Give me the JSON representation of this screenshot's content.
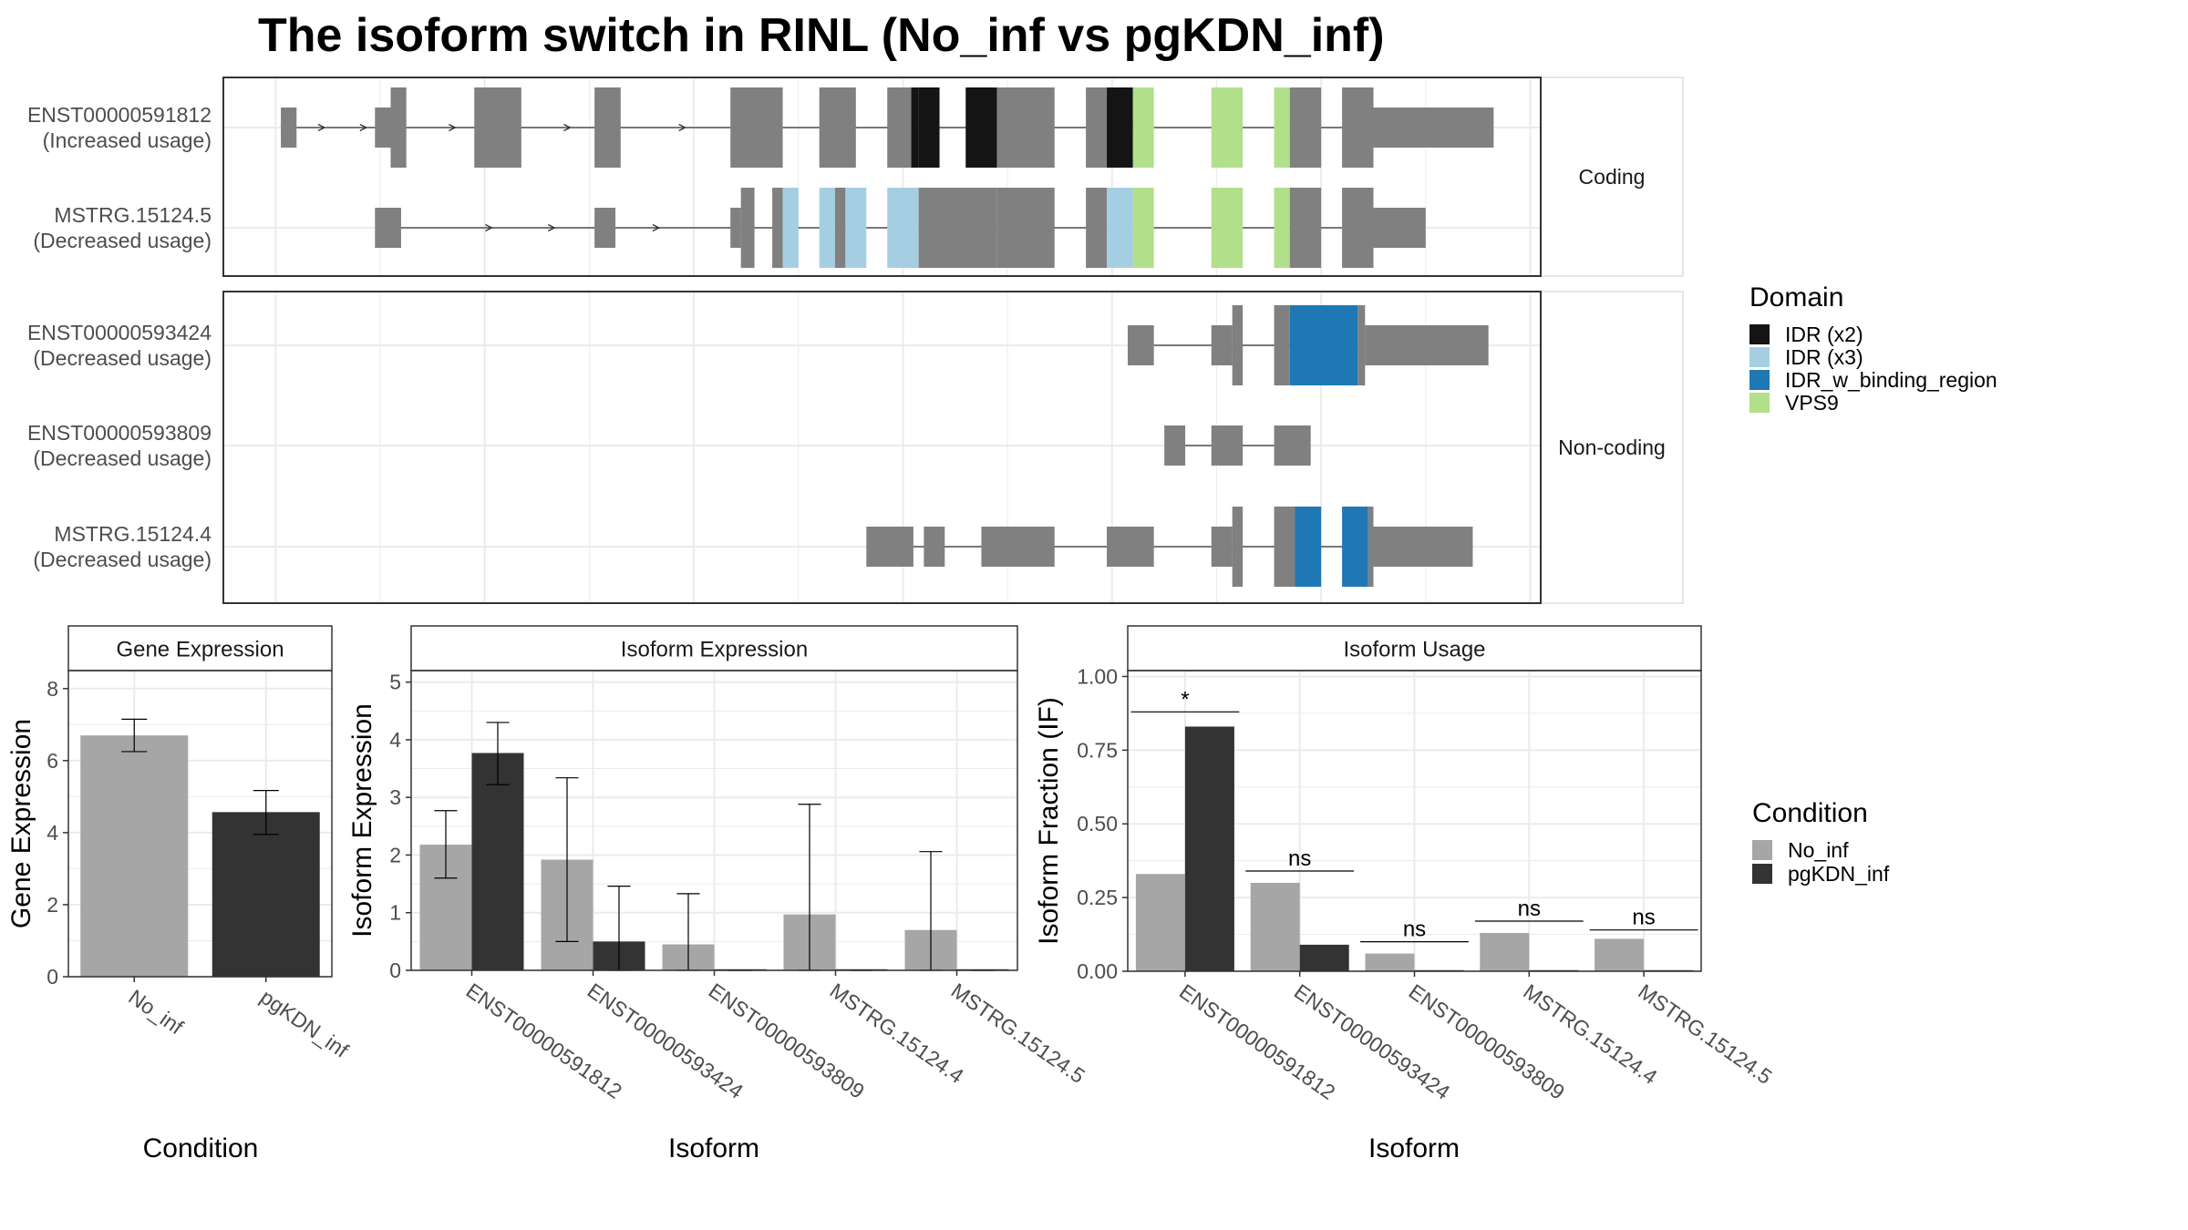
{
  "title": "The isoform switch in RINL (No_inf vs pgKDN_inf)",
  "colors": {
    "exon": "#808080",
    "panel_border": "#333333",
    "grid": "#ebebeb",
    "strip_bg": "#ffffff",
    "no_inf": "#a6a6a6",
    "pgkdn_inf": "#333333"
  },
  "transcript_panels": [
    {
      "strip_label": "Coding",
      "transcripts": [
        {
          "id": "ENST00000591812",
          "usage": "(Increased usage)",
          "exons": [
            {
              "s": 0.5,
              "e": 2.0,
              "h": "s"
            },
            {
              "s": 9.5,
              "e": 11.0,
              "h": "s"
            },
            {
              "s": 11.0,
              "e": 12.5,
              "h": "t"
            },
            {
              "s": 19.0,
              "e": 23.5,
              "h": "t"
            },
            {
              "s": 30.5,
              "e": 33.0,
              "h": "t"
            },
            {
              "s": 43.5,
              "e": 48.5,
              "h": "t"
            },
            {
              "s": 52.0,
              "e": 55.5,
              "h": "t"
            },
            {
              "s": 58.5,
              "e": 61.5,
              "h": "t",
              "d": "IDR (x2)",
              "ds": 60.8,
              "de": 61.5
            },
            {
              "s": 61.5,
              "e": 63.5,
              "h": "t",
              "d": "IDR (x2)"
            },
            {
              "s": 66.0,
              "e": 69.0,
              "h": "t",
              "d": "IDR (x2)"
            },
            {
              "s": 69.0,
              "e": 74.5,
              "h": "t"
            },
            {
              "s": 77.5,
              "e": 79.5,
              "h": "t"
            },
            {
              "s": 79.5,
              "e": 82.0,
              "h": "t",
              "d": "IDR (x2)"
            },
            {
              "s": 82.0,
              "e": 84.0,
              "h": "t",
              "d": "VPS9"
            },
            {
              "s": 89.5,
              "e": 92.5,
              "h": "t",
              "d": "VPS9"
            },
            {
              "s": 95.5,
              "e": 97.0,
              "h": "t",
              "d": "VPS9"
            },
            {
              "s": 97.0,
              "e": 100.0,
              "h": "t"
            },
            {
              "s": 102.0,
              "e": 105.0,
              "h": "t"
            },
            {
              "s": 105.0,
              "e": 116.5,
              "h": "s"
            }
          ],
          "intron": {
            "s": 2.0,
            "e": 105.0
          },
          "arrows": [
            4.5,
            8.5,
            17.0,
            28.0,
            39.0
          ]
        },
        {
          "id": "MSTRG.15124.5",
          "usage": "(Decreased usage)",
          "exons": [
            {
              "s": 9.5,
              "e": 12.0,
              "h": "s"
            },
            {
              "s": 30.5,
              "e": 32.5,
              "h": "s"
            },
            {
              "s": 43.5,
              "e": 44.5,
              "h": "s"
            },
            {
              "s": 44.5,
              "e": 45.8,
              "h": "t"
            },
            {
              "s": 47.5,
              "e": 48.5,
              "h": "t"
            },
            {
              "s": 48.5,
              "e": 50.0,
              "h": "t",
              "d": "IDR (x3)"
            },
            {
              "s": 52.0,
              "e": 53.5,
              "h": "t",
              "d": "IDR (x3)"
            },
            {
              "s": 53.5,
              "e": 54.5,
              "h": "t"
            },
            {
              "s": 54.5,
              "e": 56.5,
              "h": "t",
              "d": "IDR (x3)"
            },
            {
              "s": 58.5,
              "e": 61.5,
              "h": "t",
              "d": "IDR (x3)"
            },
            {
              "s": 61.5,
              "e": 69.0,
              "h": "t"
            },
            {
              "s": 69.0,
              "e": 74.5,
              "h": "t"
            },
            {
              "s": 77.5,
              "e": 79.5,
              "h": "t"
            },
            {
              "s": 79.5,
              "e": 82.0,
              "h": "t",
              "d": "IDR (x3)"
            },
            {
              "s": 82.0,
              "e": 84.0,
              "h": "t",
              "d": "VPS9"
            },
            {
              "s": 89.5,
              "e": 92.5,
              "h": "t",
              "d": "VPS9"
            },
            {
              "s": 95.5,
              "e": 97.0,
              "h": "t",
              "d": "VPS9"
            },
            {
              "s": 97.0,
              "e": 100.0,
              "h": "t"
            },
            {
              "s": 102.0,
              "e": 105.0,
              "h": "t"
            },
            {
              "s": 105.0,
              "e": 110.0,
              "h": "s"
            }
          ],
          "intron": {
            "s": 12.0,
            "e": 105.0
          },
          "arrows": [
            20.5,
            26.5,
            36.5
          ]
        }
      ]
    },
    {
      "strip_label": "Non-coding",
      "transcripts": [
        {
          "id": "ENST00000593424",
          "usage": "(Decreased usage)",
          "exons": [
            {
              "s": 81.5,
              "e": 84.0,
              "h": "s"
            },
            {
              "s": 89.5,
              "e": 91.5,
              "h": "s"
            },
            {
              "s": 91.5,
              "e": 92.5,
              "h": "t"
            },
            {
              "s": 95.5,
              "e": 97.0,
              "h": "t"
            },
            {
              "s": 97.0,
              "e": 103.5,
              "h": "t",
              "d": "IDR_w_binding_region"
            },
            {
              "s": 103.5,
              "e": 104.2,
              "h": "t"
            },
            {
              "s": 104.2,
              "e": 116.0,
              "h": "s"
            }
          ],
          "intron": {
            "s": 84.0,
            "e": 104.2
          },
          "arrows": []
        },
        {
          "id": "ENST00000593809",
          "usage": "(Decreased usage)",
          "exons": [
            {
              "s": 85.0,
              "e": 87.0,
              "h": "s"
            },
            {
              "s": 89.5,
              "e": 92.5,
              "h": "s"
            },
            {
              "s": 95.5,
              "e": 99.0,
              "h": "s"
            }
          ],
          "intron": {
            "s": 87.0,
            "e": 95.5
          },
          "arrows": []
        },
        {
          "id": "MSTRG.15124.4",
          "usage": "(Decreased usage)",
          "exons": [
            {
              "s": 56.5,
              "e": 61.0,
              "h": "s"
            },
            {
              "s": 62.0,
              "e": 64.0,
              "h": "s"
            },
            {
              "s": 67.5,
              "e": 74.5,
              "h": "s"
            },
            {
              "s": 79.5,
              "e": 84.0,
              "h": "s"
            },
            {
              "s": 89.5,
              "e": 91.5,
              "h": "s"
            },
            {
              "s": 91.5,
              "e": 92.5,
              "h": "t"
            },
            {
              "s": 95.5,
              "e": 97.5,
              "h": "t"
            },
            {
              "s": 97.5,
              "e": 100.0,
              "h": "t",
              "d": "IDR_w_binding_region"
            },
            {
              "s": 102.0,
              "e": 104.5,
              "h": "t",
              "d": "IDR_w_binding_region"
            },
            {
              "s": 104.5,
              "e": 105.0,
              "h": "t"
            },
            {
              "s": 105.0,
              "e": 114.5,
              "h": "s"
            }
          ],
          "intron": {
            "s": 61.0,
            "e": 105.0
          },
          "arrows": []
        }
      ]
    }
  ],
  "domain_legend": {
    "title": "Domain",
    "entries": [
      {
        "label": "IDR (x2)",
        "color": "#141414"
      },
      {
        "label": "IDR (x3)",
        "color": "#a6cee3"
      },
      {
        "label": "IDR_w_binding_region",
        "color": "#1f78b4"
      },
      {
        "label": "VPS9",
        "color": "#b2df8a"
      }
    ]
  },
  "condition_legend": {
    "title": "Condition",
    "entries": [
      {
        "label": "No_inf",
        "color": "#a6a6a6"
      },
      {
        "label": "pgKDN_inf",
        "color": "#333333"
      }
    ]
  },
  "chart_data": [
    {
      "type": "bar",
      "title": "Gene Expression",
      "xlabel": "Condition",
      "ylabel": "Gene Expression",
      "ylim": [
        0,
        8.5
      ],
      "yticks": [
        0,
        2,
        4,
        6,
        8
      ],
      "ytick_labels": [
        "0",
        "2",
        "4",
        "6",
        "8"
      ],
      "categories": [
        "No_inf",
        "pgKDN_inf"
      ],
      "series": [
        {
          "name": "No_inf",
          "values": [
            6.7,
            null
          ],
          "err_low": [
            6.25,
            null
          ],
          "err_high": [
            7.15,
            null
          ]
        },
        {
          "name": "pgKDN_inf",
          "values": [
            null,
            4.57
          ],
          "err_low": [
            null,
            3.95
          ],
          "err_high": [
            null,
            5.17
          ]
        }
      ]
    },
    {
      "type": "bar",
      "title": "Isoform Expression",
      "xlabel": "Isoform",
      "ylabel": "Isoform Expression",
      "ylim": [
        0,
        5.2
      ],
      "yticks": [
        0,
        1,
        2,
        3,
        4,
        5
      ],
      "ytick_labels": [
        "0",
        "1",
        "2",
        "3",
        "4",
        "5"
      ],
      "categories": [
        "ENST00000591812",
        "ENST00000593424",
        "ENST00000593809",
        "MSTRG.15124.4",
        "MSTRG.15124.5"
      ],
      "series": [
        {
          "name": "No_inf",
          "values": [
            2.18,
            1.92,
            0.45,
            0.97,
            0.7
          ],
          "err_low": [
            1.6,
            0.5,
            0,
            0,
            0
          ],
          "err_high": [
            2.77,
            3.34,
            1.33,
            2.88,
            2.06
          ]
        },
        {
          "name": "pgKDN_inf",
          "values": [
            3.77,
            0.5,
            0,
            0,
            0
          ],
          "err_low": [
            3.22,
            0,
            0,
            0,
            0
          ],
          "err_high": [
            4.3,
            1.46,
            0,
            0,
            0
          ]
        }
      ]
    },
    {
      "type": "bar",
      "title": "Isoform Usage",
      "xlabel": "Isoform",
      "ylabel": "Isoform Fraction (IF)",
      "ylim": [
        0,
        1.02
      ],
      "yticks": [
        0,
        0.25,
        0.5,
        0.75,
        1.0
      ],
      "ytick_labels": [
        "0.00",
        "0.25",
        "0.50",
        "0.75",
        "1.00"
      ],
      "categories": [
        "ENST00000591812",
        "ENST00000593424",
        "ENST00000593809",
        "MSTRG.15124.4",
        "MSTRG.15124.5"
      ],
      "series": [
        {
          "name": "No_inf",
          "values": [
            0.33,
            0.3,
            0.06,
            0.13,
            0.11
          ]
        },
        {
          "name": "pgKDN_inf",
          "values": [
            0.83,
            0.09,
            0,
            0,
            0
          ]
        }
      ],
      "significance": [
        {
          "label": "*",
          "y": 0.88
        },
        {
          "label": "ns",
          "y": 0.34
        },
        {
          "label": "ns",
          "y": 0.1
        },
        {
          "label": "ns",
          "y": 0.17
        },
        {
          "label": "ns",
          "y": 0.14
        }
      ]
    }
  ]
}
